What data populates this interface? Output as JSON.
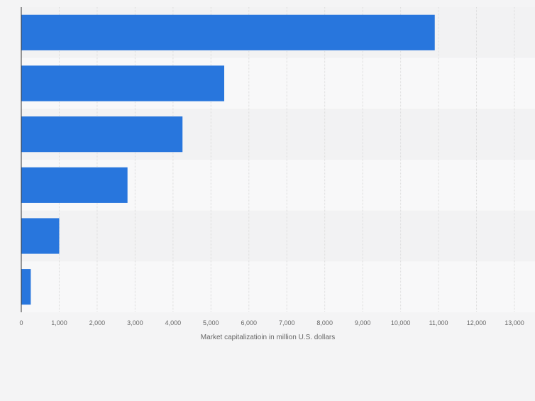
{
  "chart_data": {
    "type": "bar",
    "orientation": "horizontal",
    "categories": [
      "",
      "",
      "",
      "",
      "",
      ""
    ],
    "values": [
      10900,
      5350,
      4250,
      2800,
      1000,
      250
    ],
    "title": "",
    "xlabel": "Market capitalizatioin in million U.S. dollars",
    "ylabel": "",
    "xlim": [
      0,
      13000
    ],
    "xticks": [
      0,
      1000,
      2000,
      3000,
      4000,
      5000,
      6000,
      7000,
      8000,
      9000,
      10000,
      11000,
      12000,
      13000
    ],
    "xtick_labels": [
      "0",
      "1,000",
      "2,000",
      "3,000",
      "4,000",
      "5,000",
      "6,000",
      "7,000",
      "8,000",
      "9,000",
      "10,000",
      "11,000",
      "12,000",
      "13,000"
    ],
    "grid": true,
    "legend": "none",
    "colors": {
      "bar": "#2876dd",
      "band_dark": "#f2f2f3",
      "band_light": "#f8f8f9",
      "page": "#f4f4f5",
      "grid": "#dcdcdc",
      "axis": "#333333",
      "tick_text": "#666666"
    }
  }
}
